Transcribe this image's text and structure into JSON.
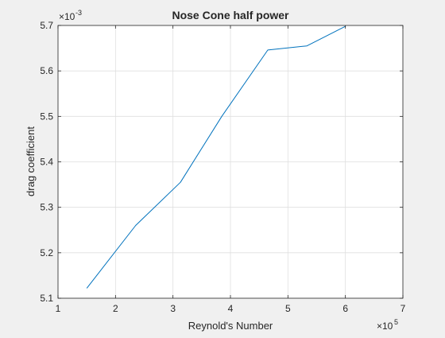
{
  "chart_data": {
    "type": "line",
    "title": "Nose Cone half power",
    "xlabel": "Reynold's Number",
    "ylabel": "drag coefficient",
    "x_exponent": {
      "base": "×10",
      "power": "5"
    },
    "y_exponent": {
      "base": "×10",
      "power": "-3"
    },
    "xlim": [
      1,
      7
    ],
    "ylim": [
      5.1,
      5.7
    ],
    "xticks": [
      1,
      2,
      3,
      4,
      5,
      6,
      7
    ],
    "yticks": [
      5.1,
      5.2,
      5.3,
      5.4,
      5.5,
      5.6,
      5.7
    ],
    "xtick_labels": [
      "1",
      "2",
      "3",
      "4",
      "5",
      "6",
      "7"
    ],
    "ytick_labels": [
      "5.1",
      "5.2",
      "5.3",
      "5.4",
      "5.5",
      "5.6",
      "5.7"
    ],
    "grid": true,
    "series": [
      {
        "color": "#0072bd",
        "x": [
          1.5,
          2.35,
          3.13,
          3.85,
          4.65,
          5.33,
          6.0
        ],
        "y": [
          5.122,
          5.26,
          5.355,
          5.5,
          5.646,
          5.655,
          5.698
        ]
      }
    ]
  }
}
